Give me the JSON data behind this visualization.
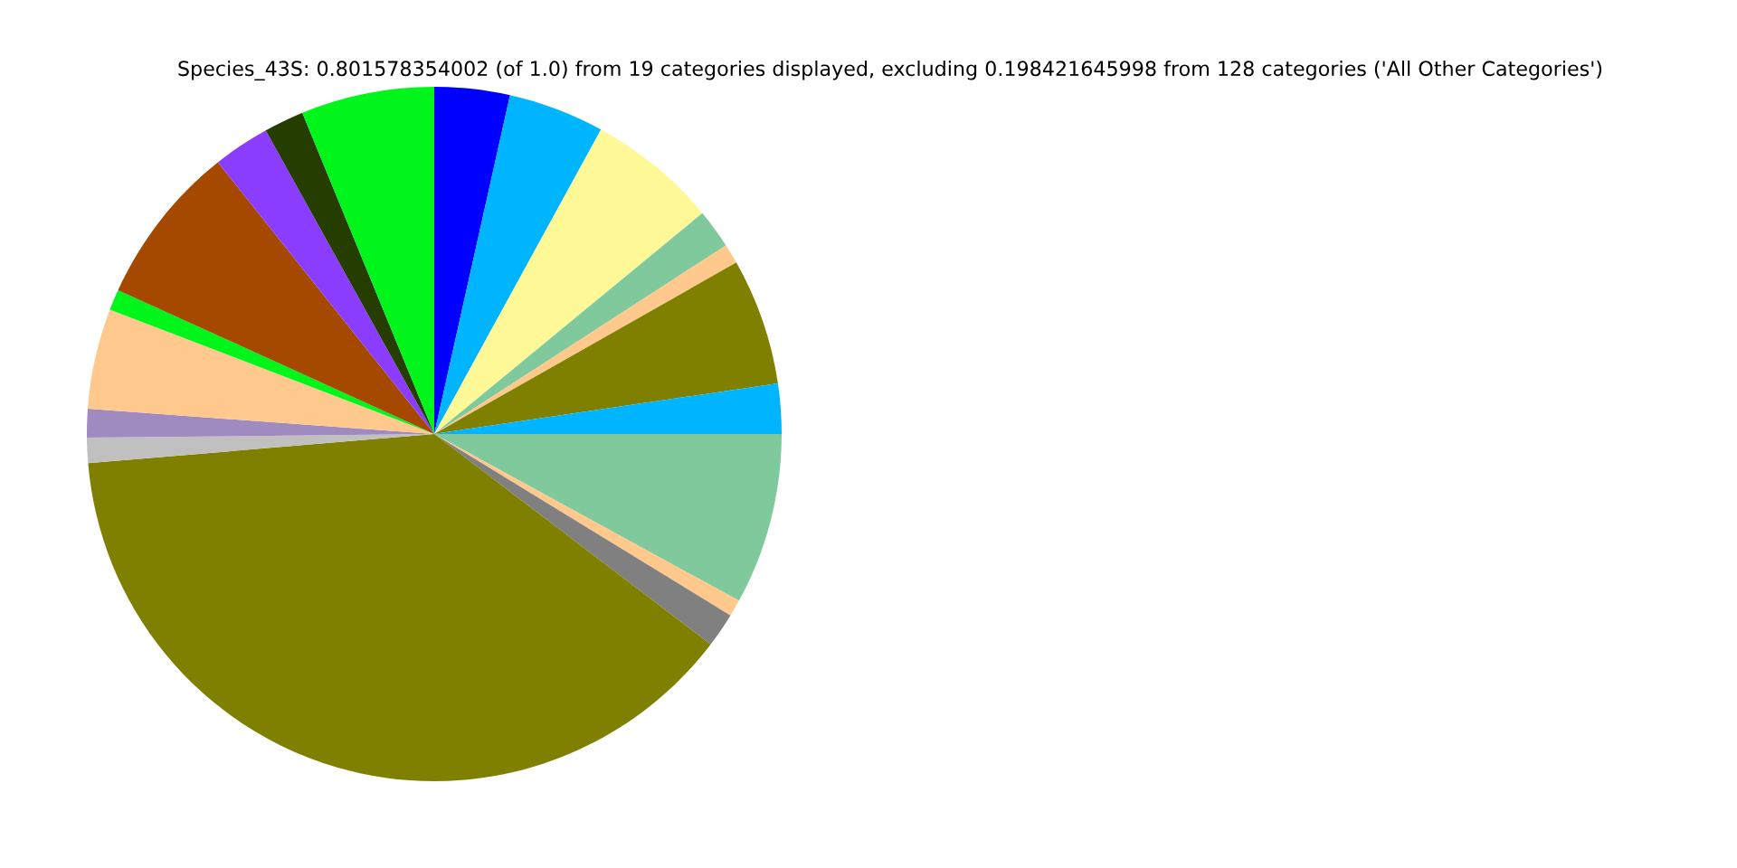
{
  "chart_data": {
    "type": "pie",
    "title": "Species_43S: 0.801578354002 (of 1.0) from 19 categories displayed, excluding 0.198421645998 from 128 categories ('All Other Categories')",
    "categories": [
      null,
      null,
      null,
      null,
      null,
      null,
      null,
      null,
      null,
      null,
      null,
      null,
      null,
      null,
      null,
      null,
      null,
      null,
      null
    ],
    "values": [
      3.5,
      4.47,
      6.06,
      1.83,
      0.92,
      5.89,
      2.33,
      7.97,
      0.78,
      1.61,
      38.3,
      1.17,
      1.33,
      4.67,
      0.97,
      7.5,
      2.64,
      1.86,
      6.2
    ],
    "colors": [
      "#0000ff",
      "#00b5ff",
      "#fff897",
      "#80c99d",
      "#ffc88c",
      "#808000",
      "#00b5ff",
      "#80c99d",
      "#ffc88c",
      "#808080",
      "#808000",
      "#c0c0c0",
      "#a08bc0",
      "#ffc88c",
      "#00f61a",
      "#a54800",
      "#8b3dff",
      "#263d00",
      "#00f61a"
    ]
  }
}
